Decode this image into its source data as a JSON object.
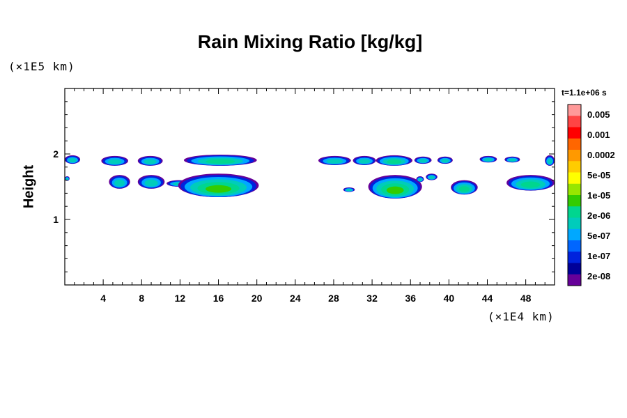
{
  "chart_data": {
    "type": "heatmap",
    "title": "Rain Mixing Ratio [kg/kg]",
    "xlabel": "",
    "ylabel": "Height",
    "x_scale_label": "(×1E4 km)",
    "y_scale_label": "(×1E5 km)",
    "time_label": "t=1.1e+06 s",
    "xlim": [
      0,
      51
    ],
    "ylim": [
      0,
      3
    ],
    "x_ticks": [
      4,
      8,
      12,
      16,
      20,
      24,
      28,
      32,
      36,
      40,
      44,
      48
    ],
    "y_ticks": [
      1,
      2
    ],
    "colorbar": {
      "labels": [
        "0.005",
        "0.001",
        "0.0002",
        "5e-05",
        "1e-05",
        "2e-06",
        "5e-07",
        "1e-07",
        "2e-08"
      ],
      "colors": [
        "#ff9999",
        "#ff4444",
        "#ff0000",
        "#ff6600",
        "#ff9900",
        "#ffcc00",
        "#ffff00",
        "#99e600",
        "#33cc00",
        "#00d68f",
        "#00ccbb",
        "#00a8ff",
        "#0066ff",
        "#0022dd",
        "#000099",
        "#660099"
      ]
    },
    "cells": [
      {
        "x": [
          0,
          1.6
        ],
        "y": [
          1.85,
          1.98
        ],
        "level": "low"
      },
      {
        "x": [
          3.8,
          6.6
        ],
        "y": [
          1.82,
          1.97
        ],
        "level": "low"
      },
      {
        "x": [
          7.6,
          10.2
        ],
        "y": [
          1.82,
          1.97
        ],
        "level": "low"
      },
      {
        "x": [
          12.4,
          20.0
        ],
        "y": [
          1.82,
          1.99
        ],
        "level": "mid"
      },
      {
        "x": [
          4.6,
          6.8
        ],
        "y": [
          1.47,
          1.68
        ],
        "level": "low"
      },
      {
        "x": [
          7.6,
          10.4
        ],
        "y": [
          1.47,
          1.68
        ],
        "level": "low"
      },
      {
        "x": [
          10.6,
          13.2
        ],
        "y": [
          1.5,
          1.6
        ],
        "level": "low"
      },
      {
        "x": [
          11.8,
          20.2
        ],
        "y": [
          1.34,
          1.7
        ],
        "level": "high"
      },
      {
        "x": [
          26.4,
          29.8
        ],
        "y": [
          1.83,
          1.97
        ],
        "level": "low"
      },
      {
        "x": [
          30.0,
          32.4
        ],
        "y": [
          1.83,
          1.97
        ],
        "level": "low"
      },
      {
        "x": [
          32.4,
          36.2
        ],
        "y": [
          1.82,
          1.98
        ],
        "level": "mid"
      },
      {
        "x": [
          36.4,
          38.2
        ],
        "y": [
          1.85,
          1.96
        ],
        "level": "low"
      },
      {
        "x": [
          38.8,
          40.4
        ],
        "y": [
          1.85,
          1.96
        ],
        "level": "low"
      },
      {
        "x": [
          43.2,
          45.0
        ],
        "y": [
          1.87,
          1.97
        ],
        "level": "low"
      },
      {
        "x": [
          45.8,
          47.4
        ],
        "y": [
          1.87,
          1.96
        ],
        "level": "low"
      },
      {
        "x": [
          50.0,
          51.0
        ],
        "y": [
          1.82,
          1.98
        ],
        "level": "low"
      },
      {
        "x": [
          29.0,
          30.2
        ],
        "y": [
          1.42,
          1.49
        ],
        "level": "low"
      },
      {
        "x": [
          31.6,
          37.2
        ],
        "y": [
          1.32,
          1.68
        ],
        "level": "high"
      },
      {
        "x": [
          36.6,
          37.4
        ],
        "y": [
          1.57,
          1.66
        ],
        "level": "low"
      },
      {
        "x": [
          37.6,
          38.8
        ],
        "y": [
          1.6,
          1.7
        ],
        "level": "low"
      },
      {
        "x": [
          40.2,
          43.0
        ],
        "y": [
          1.38,
          1.6
        ],
        "level": "mid"
      },
      {
        "x": [
          46.0,
          51.0
        ],
        "y": [
          1.44,
          1.68
        ],
        "level": "mid"
      },
      {
        "x": [
          0,
          0.5
        ],
        "y": [
          1.59,
          1.66
        ],
        "level": "low"
      }
    ]
  }
}
